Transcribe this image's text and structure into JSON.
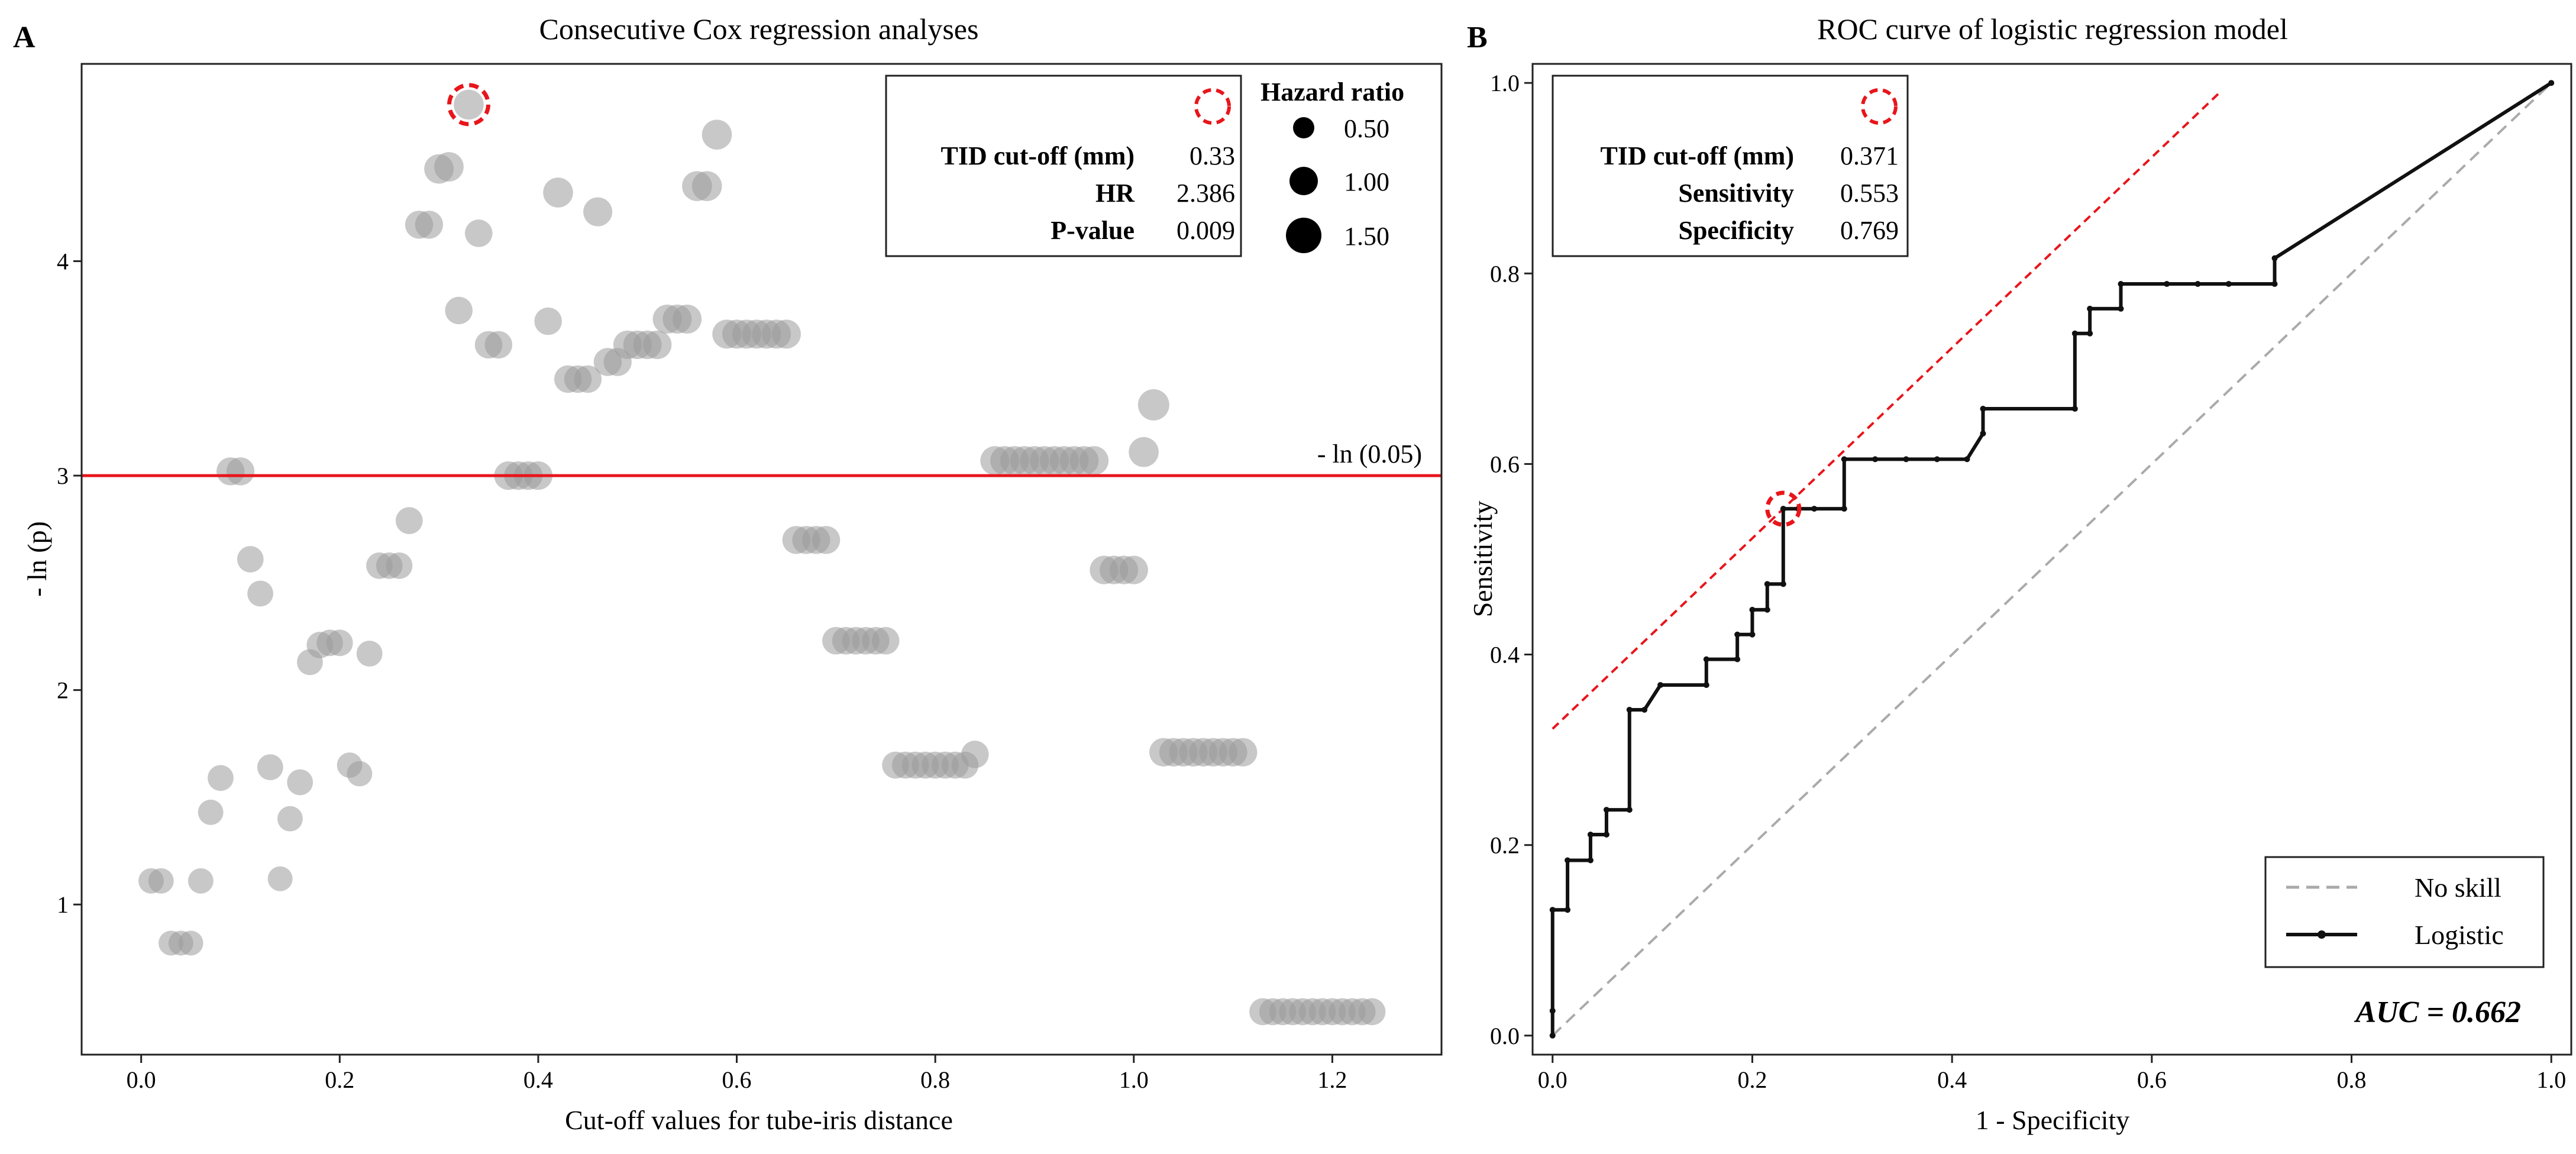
{
  "chart_data": [
    {
      "panel_letter": "A",
      "type": "scatter",
      "title": "Consecutive Cox regression analyses",
      "xlabel": "Cut-off values for tube-iris distance",
      "ylabel": "- ln (p)",
      "xlim": [
        -0.06,
        1.31
      ],
      "ylim": [
        0.3,
        4.92
      ],
      "xticks": [
        0.0,
        0.2,
        0.4,
        0.6,
        0.8,
        1.0,
        1.2
      ],
      "xtick_labels": [
        "0.0",
        "0.2",
        "0.4",
        "0.6",
        "0.8",
        "1.0",
        "1.2"
      ],
      "yticks": [
        1,
        2,
        3,
        4
      ],
      "ytick_labels": [
        "1",
        "2",
        "3",
        "4"
      ],
      "grid": false,
      "point_color": "#9a9a9a",
      "point_opacity": 0.55,
      "threshold_line": {
        "y": 3.0,
        "label": "- ln (0.05)",
        "color": "#e8151b"
      },
      "highlight": {
        "x": 0.33,
        "y": 4.73,
        "color": "#e8151b",
        "style": "dashed circle"
      },
      "info_box": {
        "placement": "top-right",
        "rows": [
          {
            "label": "TID cut-off (mm)",
            "value": "0.33"
          },
          {
            "label": "HR",
            "value": "2.386"
          },
          {
            "label": "P-value",
            "value": "0.009"
          }
        ]
      },
      "size_legend": {
        "title": "Hazard ratio",
        "placement": "top-right",
        "entries": [
          {
            "label": "0.50",
            "hr": 0.5
          },
          {
            "label": "1.00",
            "hr": 1.0
          },
          {
            "label": "1.50",
            "hr": 1.5
          }
        ]
      },
      "points": [
        {
          "x": 0.01,
          "y": 1.11,
          "hr": 1.15
        },
        {
          "x": 0.02,
          "y": 1.11,
          "hr": 1.15
        },
        {
          "x": 0.03,
          "y": 0.82,
          "hr": 1.1
        },
        {
          "x": 0.04,
          "y": 0.82,
          "hr": 1.1
        },
        {
          "x": 0.05,
          "y": 0.82,
          "hr": 1.1
        },
        {
          "x": 0.06,
          "y": 1.11,
          "hr": 1.15
        },
        {
          "x": 0.07,
          "y": 1.43,
          "hr": 1.15
        },
        {
          "x": 0.08,
          "y": 1.59,
          "hr": 1.2
        },
        {
          "x": 0.09,
          "y": 3.02,
          "hr": 1.4
        },
        {
          "x": 0.1,
          "y": 3.02,
          "hr": 1.4
        },
        {
          "x": 0.11,
          "y": 2.61,
          "hr": 1.25
        },
        {
          "x": 0.12,
          "y": 2.45,
          "hr": 1.2
        },
        {
          "x": 0.13,
          "y": 1.64,
          "hr": 1.2
        },
        {
          "x": 0.14,
          "y": 1.12,
          "hr": 1.1
        },
        {
          "x": 0.15,
          "y": 1.4,
          "hr": 1.15
        },
        {
          "x": 0.16,
          "y": 1.57,
          "hr": 1.2
        },
        {
          "x": 0.17,
          "y": 2.13,
          "hr": 1.2
        },
        {
          "x": 0.18,
          "y": 2.21,
          "hr": 1.25
        },
        {
          "x": 0.19,
          "y": 2.22,
          "hr": 1.25
        },
        {
          "x": 0.2,
          "y": 2.22,
          "hr": 1.25
        },
        {
          "x": 0.21,
          "y": 1.65,
          "hr": 1.15
        },
        {
          "x": 0.22,
          "y": 1.61,
          "hr": 1.15
        },
        {
          "x": 0.23,
          "y": 2.17,
          "hr": 1.2
        },
        {
          "x": 0.24,
          "y": 2.58,
          "hr": 1.25
        },
        {
          "x": 0.25,
          "y": 2.58,
          "hr": 1.25
        },
        {
          "x": 0.26,
          "y": 2.58,
          "hr": 1.25
        },
        {
          "x": 0.27,
          "y": 2.79,
          "hr": 1.3
        },
        {
          "x": 0.28,
          "y": 4.17,
          "hr": 1.4
        },
        {
          "x": 0.29,
          "y": 4.17,
          "hr": 1.4
        },
        {
          "x": 0.3,
          "y": 4.43,
          "hr": 1.55
        },
        {
          "x": 0.31,
          "y": 4.44,
          "hr": 1.55
        },
        {
          "x": 0.32,
          "y": 3.77,
          "hr": 1.35
        },
        {
          "x": 0.33,
          "y": 4.73,
          "hr": 1.6
        },
        {
          "x": 0.34,
          "y": 4.13,
          "hr": 1.35
        },
        {
          "x": 0.35,
          "y": 3.61,
          "hr": 1.35
        },
        {
          "x": 0.36,
          "y": 3.61,
          "hr": 1.35
        },
        {
          "x": 0.37,
          "y": 3.0,
          "hr": 1.45
        },
        {
          "x": 0.38,
          "y": 3.0,
          "hr": 1.45
        },
        {
          "x": 0.39,
          "y": 3.0,
          "hr": 1.45
        },
        {
          "x": 0.4,
          "y": 3.0,
          "hr": 1.45
        },
        {
          "x": 0.41,
          "y": 3.72,
          "hr": 1.35
        },
        {
          "x": 0.42,
          "y": 4.32,
          "hr": 1.6
        },
        {
          "x": 0.43,
          "y": 3.45,
          "hr": 1.35
        },
        {
          "x": 0.44,
          "y": 3.45,
          "hr": 1.35
        },
        {
          "x": 0.45,
          "y": 3.45,
          "hr": 1.35
        },
        {
          "x": 0.46,
          "y": 4.23,
          "hr": 1.5
        },
        {
          "x": 0.47,
          "y": 3.53,
          "hr": 1.4
        },
        {
          "x": 0.48,
          "y": 3.53,
          "hr": 1.4
        },
        {
          "x": 0.49,
          "y": 3.61,
          "hr": 1.45
        },
        {
          "x": 0.5,
          "y": 3.61,
          "hr": 1.45
        },
        {
          "x": 0.51,
          "y": 3.61,
          "hr": 1.45
        },
        {
          "x": 0.52,
          "y": 3.61,
          "hr": 1.45
        },
        {
          "x": 0.53,
          "y": 3.73,
          "hr": 1.5
        },
        {
          "x": 0.54,
          "y": 3.73,
          "hr": 1.5
        },
        {
          "x": 0.55,
          "y": 3.73,
          "hr": 1.5
        },
        {
          "x": 0.56,
          "y": 4.35,
          "hr": 1.6
        },
        {
          "x": 0.57,
          "y": 4.35,
          "hr": 1.6
        },
        {
          "x": 0.58,
          "y": 4.59,
          "hr": 1.6
        },
        {
          "x": 0.59,
          "y": 3.66,
          "hr": 1.5
        },
        {
          "x": 0.6,
          "y": 3.66,
          "hr": 1.5
        },
        {
          "x": 0.61,
          "y": 3.66,
          "hr": 1.5
        },
        {
          "x": 0.62,
          "y": 3.66,
          "hr": 1.5
        },
        {
          "x": 0.63,
          "y": 3.66,
          "hr": 1.5
        },
        {
          "x": 0.64,
          "y": 3.66,
          "hr": 1.5
        },
        {
          "x": 0.65,
          "y": 3.66,
          "hr": 1.5
        },
        {
          "x": 0.66,
          "y": 2.7,
          "hr": 1.4
        },
        {
          "x": 0.67,
          "y": 2.7,
          "hr": 1.4
        },
        {
          "x": 0.68,
          "y": 2.7,
          "hr": 1.4
        },
        {
          "x": 0.69,
          "y": 2.7,
          "hr": 1.4
        },
        {
          "x": 0.7,
          "y": 2.23,
          "hr": 1.35
        },
        {
          "x": 0.71,
          "y": 2.23,
          "hr": 1.35
        },
        {
          "x": 0.72,
          "y": 2.23,
          "hr": 1.35
        },
        {
          "x": 0.73,
          "y": 2.23,
          "hr": 1.35
        },
        {
          "x": 0.74,
          "y": 2.23,
          "hr": 1.35
        },
        {
          "x": 0.75,
          "y": 2.23,
          "hr": 1.35
        },
        {
          "x": 0.76,
          "y": 1.65,
          "hr": 1.3
        },
        {
          "x": 0.77,
          "y": 1.65,
          "hr": 1.3
        },
        {
          "x": 0.78,
          "y": 1.65,
          "hr": 1.3
        },
        {
          "x": 0.79,
          "y": 1.65,
          "hr": 1.3
        },
        {
          "x": 0.8,
          "y": 1.65,
          "hr": 1.3
        },
        {
          "x": 0.81,
          "y": 1.65,
          "hr": 1.3
        },
        {
          "x": 0.82,
          "y": 1.65,
          "hr": 1.3
        },
        {
          "x": 0.83,
          "y": 1.65,
          "hr": 1.3
        },
        {
          "x": 0.84,
          "y": 1.7,
          "hr": 1.35
        },
        {
          "x": 0.86,
          "y": 3.07,
          "hr": 1.5
        },
        {
          "x": 0.87,
          "y": 3.07,
          "hr": 1.5
        },
        {
          "x": 0.88,
          "y": 3.07,
          "hr": 1.5
        },
        {
          "x": 0.89,
          "y": 3.07,
          "hr": 1.5
        },
        {
          "x": 0.9,
          "y": 3.07,
          "hr": 1.5
        },
        {
          "x": 0.91,
          "y": 3.07,
          "hr": 1.5
        },
        {
          "x": 0.92,
          "y": 3.07,
          "hr": 1.5
        },
        {
          "x": 0.93,
          "y": 3.07,
          "hr": 1.5
        },
        {
          "x": 0.94,
          "y": 3.07,
          "hr": 1.5
        },
        {
          "x": 0.95,
          "y": 3.07,
          "hr": 1.5
        },
        {
          "x": 0.96,
          "y": 3.07,
          "hr": 1.5
        },
        {
          "x": 0.97,
          "y": 2.56,
          "hr": 1.45
        },
        {
          "x": 0.98,
          "y": 2.56,
          "hr": 1.45
        },
        {
          "x": 0.99,
          "y": 2.56,
          "hr": 1.45
        },
        {
          "x": 1.0,
          "y": 2.56,
          "hr": 1.45
        },
        {
          "x": 1.01,
          "y": 3.11,
          "hr": 1.6
        },
        {
          "x": 1.02,
          "y": 3.33,
          "hr": 1.75
        },
        {
          "x": 1.03,
          "y": 1.71,
          "hr": 1.45
        },
        {
          "x": 1.04,
          "y": 1.71,
          "hr": 1.45
        },
        {
          "x": 1.05,
          "y": 1.71,
          "hr": 1.45
        },
        {
          "x": 1.06,
          "y": 1.71,
          "hr": 1.45
        },
        {
          "x": 1.07,
          "y": 1.71,
          "hr": 1.45
        },
        {
          "x": 1.08,
          "y": 1.71,
          "hr": 1.45
        },
        {
          "x": 1.09,
          "y": 1.71,
          "hr": 1.45
        },
        {
          "x": 1.1,
          "y": 1.71,
          "hr": 1.45
        },
        {
          "x": 1.11,
          "y": 1.71,
          "hr": 1.45
        },
        {
          "x": 1.13,
          "y": 0.5,
          "hr": 1.3
        },
        {
          "x": 1.14,
          "y": 0.5,
          "hr": 1.3
        },
        {
          "x": 1.15,
          "y": 0.5,
          "hr": 1.3
        },
        {
          "x": 1.16,
          "y": 0.5,
          "hr": 1.3
        },
        {
          "x": 1.17,
          "y": 0.5,
          "hr": 1.3
        },
        {
          "x": 1.18,
          "y": 0.5,
          "hr": 1.3
        },
        {
          "x": 1.19,
          "y": 0.5,
          "hr": 1.3
        },
        {
          "x": 1.2,
          "y": 0.5,
          "hr": 1.3
        },
        {
          "x": 1.21,
          "y": 0.5,
          "hr": 1.3
        },
        {
          "x": 1.22,
          "y": 0.5,
          "hr": 1.3
        },
        {
          "x": 1.23,
          "y": 0.5,
          "hr": 1.3
        },
        {
          "x": 1.24,
          "y": 0.5,
          "hr": 1.3
        }
      ]
    },
    {
      "panel_letter": "B",
      "type": "line",
      "title": "ROC curve of logistic regression model",
      "xlabel": "1 - Specificity",
      "ylabel": "Sensitivity",
      "xlim": [
        -0.02,
        1.02
      ],
      "ylim": [
        -0.02,
        1.02
      ],
      "xticks": [
        0.0,
        0.2,
        0.4,
        0.6,
        0.8,
        1.0
      ],
      "xtick_labels": [
        "0.0",
        "0.2",
        "0.4",
        "0.6",
        "0.8",
        "1.0"
      ],
      "yticks": [
        0.0,
        0.2,
        0.4,
        0.6,
        0.8,
        1.0
      ],
      "ytick_labels": [
        "0.0",
        "0.2",
        "0.4",
        "0.6",
        "0.8",
        "1.0"
      ],
      "grid": false,
      "annotation": "AUC = 0.662",
      "highlight": {
        "x": 0.231,
        "y": 0.553,
        "color": "#e8151b",
        "style": "dashed circle"
      },
      "tangent_line": {
        "x": [
          0.0,
          0.67
        ],
        "y": [
          0.322,
          0.992
        ],
        "color": "#e8151b",
        "style": "dashed"
      },
      "info_box": {
        "placement": "top-left",
        "rows": [
          {
            "label": "TID cut-off (mm)",
            "value": "0.371"
          },
          {
            "label": "Sensitivity",
            "value": "0.553"
          },
          {
            "label": "Specificity",
            "value": "0.769"
          }
        ]
      },
      "legend": {
        "placement": "bottom-right",
        "entries": [
          "No skill",
          "Logistic"
        ]
      },
      "series": [
        {
          "name": "No skill",
          "style": "dashed",
          "color": "#aaaaaa",
          "x": [
            0,
            1
          ],
          "y": [
            0,
            1
          ]
        },
        {
          "name": "Logistic",
          "style": "solid",
          "color": "#111111",
          "x": [
            0.0,
            0.0,
            0.0,
            0.015,
            0.015,
            0.038,
            0.038,
            0.054,
            0.054,
            0.077,
            0.077,
            0.092,
            0.108,
            0.154,
            0.154,
            0.185,
            0.185,
            0.2,
            0.2,
            0.215,
            0.215,
            0.231,
            0.231,
            0.246,
            0.262,
            0.292,
            0.292,
            0.323,
            0.354,
            0.385,
            0.415,
            0.431,
            0.431,
            0.523,
            0.523,
            0.538,
            0.538,
            0.569,
            0.569,
            0.615,
            0.646,
            0.677,
            0.723,
            0.723,
            1.0
          ],
          "y": [
            0.0,
            0.026,
            0.132,
            0.132,
            0.184,
            0.184,
            0.211,
            0.211,
            0.237,
            0.237,
            0.342,
            0.342,
            0.368,
            0.368,
            0.395,
            0.395,
            0.421,
            0.421,
            0.447,
            0.447,
            0.474,
            0.474,
            0.553,
            0.553,
            0.553,
            0.553,
            0.605,
            0.605,
            0.605,
            0.605,
            0.605,
            0.632,
            0.658,
            0.658,
            0.737,
            0.737,
            0.763,
            0.763,
            0.789,
            0.789,
            0.789,
            0.789,
            0.789,
            0.816,
            1.0
          ]
        }
      ]
    }
  ]
}
